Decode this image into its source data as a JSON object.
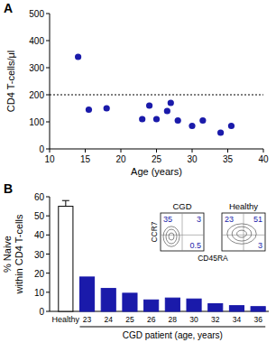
{
  "chart_data": [
    {
      "type": "scatter",
      "label": "A",
      "x_label": "Age (years)",
      "y_label": "CD4 T-cells/μl",
      "x": [
        14,
        15.5,
        18,
        23,
        24,
        25,
        26.5,
        27,
        28,
        30,
        31.5,
        34,
        35.5
      ],
      "values": [
        340,
        145,
        150,
        110,
        160,
        110,
        140,
        170,
        105,
        85,
        105,
        60,
        85
      ],
      "color": "#1a1aaa",
      "marker": "circle",
      "reference_line": 200,
      "xlim": [
        10,
        40
      ],
      "xticks": [
        10,
        15,
        20,
        25,
        30,
        35,
        40
      ],
      "ylim": [
        0,
        500
      ],
      "yticks": [
        0,
        100,
        200,
        300,
        400,
        500
      ]
    },
    {
      "type": "bar",
      "label": "B",
      "y_label": [
        "% Naive",
        "within CD4 T-cells"
      ],
      "group_label": "CGD patient (age, years)",
      "categories": [
        "Healthy",
        "23",
        "24",
        "25",
        "26",
        "28",
        "30",
        "32",
        "34",
        "36"
      ],
      "values": [
        55,
        18,
        12,
        9.5,
        6,
        7,
        6.5,
        4,
        3,
        2.5
      ],
      "errors": [
        3,
        null,
        null,
        null,
        null,
        null,
        null,
        null,
        null,
        null
      ],
      "colors": [
        "#ffffff",
        "#1a1aaa",
        "#1a1aaa",
        "#1a1aaa",
        "#1a1aaa",
        "#1a1aaa",
        "#1a1aaa",
        "#1a1aaa",
        "#1a1aaa",
        "#1a1aaa"
      ],
      "ylim": [
        0,
        60
      ],
      "yticks": [
        0,
        10,
        20,
        30,
        40,
        50,
        60
      ],
      "insets": [
        {
          "title": "CGD",
          "x_label": "CD45RA",
          "y_label": "CCR7",
          "quadrants": [
            35,
            3,
            0.5
          ]
        },
        {
          "title": "Healthy",
          "quadrants": [
            23,
            51,
            3
          ]
        }
      ]
    }
  ]
}
